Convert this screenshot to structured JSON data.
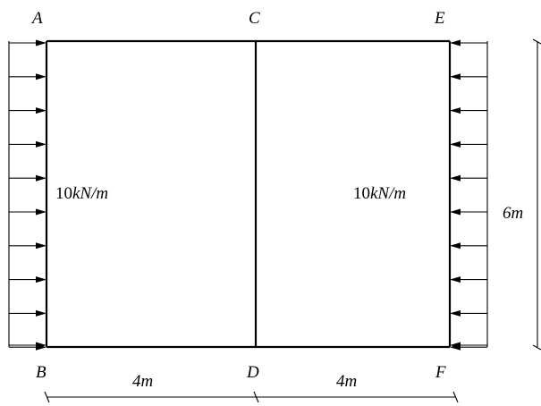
{
  "diagram": {
    "nodes": {
      "A": "A",
      "C": "C",
      "E": "E",
      "B": "B",
      "D": "D",
      "F": "F"
    },
    "left_load": {
      "value": "10",
      "unit": "kN/m",
      "direction": "right"
    },
    "right_load": {
      "value": "10",
      "unit": "kN/m",
      "direction": "left"
    },
    "height_label": "6m",
    "span_left_label": "4m",
    "span_right_label": "4m"
  }
}
